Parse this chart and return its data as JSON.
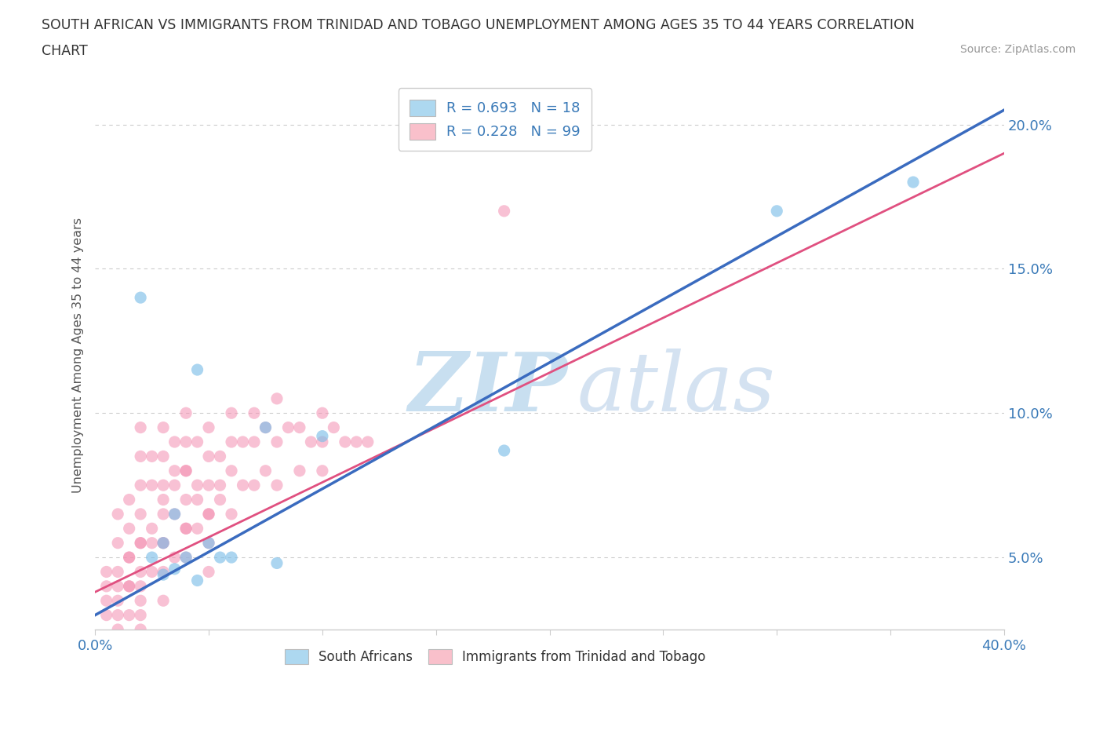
{
  "title_line1": "SOUTH AFRICAN VS IMMIGRANTS FROM TRINIDAD AND TOBAGO UNEMPLOYMENT AMONG AGES 35 TO 44 YEARS CORRELATION",
  "title_line2": "CHART",
  "source": "Source: ZipAtlas.com",
  "ylabel": "Unemployment Among Ages 35 to 44 years",
  "xlim": [
    0,
    0.4
  ],
  "ylim": [
    0.025,
    0.215
  ],
  "xticks": [
    0.0,
    0.05,
    0.1,
    0.15,
    0.2,
    0.25,
    0.3,
    0.35,
    0.4
  ],
  "yticks": [
    0.05,
    0.1,
    0.15,
    0.2
  ],
  "ytick_labels": [
    "5.0%",
    "10.0%",
    "15.0%",
    "20.0%"
  ],
  "blue_R": 0.693,
  "blue_N": 18,
  "pink_R": 0.228,
  "pink_N": 99,
  "blue_legend_color": "#add8f0",
  "pink_legend_color": "#f9c0cb",
  "blue_dot_color": "#7fbfe8",
  "pink_dot_color": "#f48fb1",
  "line_blue_color": "#3a6bbf",
  "line_pink_color": "#e05080",
  "watermark_zip": "ZIP",
  "watermark_atlas": "atlas",
  "watermark_color": "#d6eaf8",
  "blue_scatter_x": [
    0.02,
    0.045,
    0.075,
    0.1,
    0.035,
    0.03,
    0.05,
    0.055,
    0.06,
    0.025,
    0.04,
    0.08,
    0.035,
    0.03,
    0.045,
    0.18,
    0.3,
    0.36
  ],
  "blue_scatter_y": [
    0.14,
    0.115,
    0.095,
    0.092,
    0.065,
    0.055,
    0.055,
    0.05,
    0.05,
    0.05,
    0.05,
    0.048,
    0.046,
    0.044,
    0.042,
    0.087,
    0.17,
    0.18
  ],
  "pink_scatter_x": [
    0.005,
    0.005,
    0.01,
    0.01,
    0.01,
    0.01,
    0.01,
    0.015,
    0.015,
    0.015,
    0.015,
    0.015,
    0.02,
    0.02,
    0.02,
    0.02,
    0.02,
    0.02,
    0.02,
    0.02,
    0.02,
    0.02,
    0.02,
    0.025,
    0.025,
    0.025,
    0.025,
    0.03,
    0.03,
    0.03,
    0.03,
    0.03,
    0.03,
    0.03,
    0.035,
    0.035,
    0.035,
    0.035,
    0.04,
    0.04,
    0.04,
    0.04,
    0.04,
    0.04,
    0.045,
    0.045,
    0.045,
    0.05,
    0.05,
    0.05,
    0.05,
    0.05,
    0.05,
    0.055,
    0.055,
    0.06,
    0.06,
    0.06,
    0.06,
    0.065,
    0.065,
    0.07,
    0.07,
    0.07,
    0.075,
    0.075,
    0.08,
    0.08,
    0.08,
    0.085,
    0.09,
    0.09,
    0.095,
    0.1,
    0.1,
    0.1,
    0.105,
    0.11,
    0.115,
    0.12,
    0.005,
    0.005,
    0.005,
    0.01,
    0.01,
    0.015,
    0.015,
    0.02,
    0.02,
    0.025,
    0.03,
    0.03,
    0.035,
    0.04,
    0.04,
    0.045,
    0.05,
    0.055,
    0.18
  ],
  "pink_scatter_y": [
    0.045,
    0.035,
    0.065,
    0.055,
    0.045,
    0.035,
    0.025,
    0.07,
    0.06,
    0.05,
    0.04,
    0.03,
    0.095,
    0.085,
    0.075,
    0.065,
    0.055,
    0.045,
    0.035,
    0.03,
    0.025,
    0.02,
    0.018,
    0.085,
    0.075,
    0.055,
    0.045,
    0.095,
    0.085,
    0.075,
    0.065,
    0.055,
    0.045,
    0.035,
    0.09,
    0.08,
    0.065,
    0.05,
    0.1,
    0.09,
    0.08,
    0.07,
    0.06,
    0.05,
    0.09,
    0.075,
    0.06,
    0.095,
    0.085,
    0.075,
    0.065,
    0.055,
    0.045,
    0.085,
    0.07,
    0.1,
    0.09,
    0.08,
    0.065,
    0.09,
    0.075,
    0.1,
    0.09,
    0.075,
    0.095,
    0.08,
    0.105,
    0.09,
    0.075,
    0.095,
    0.095,
    0.08,
    0.09,
    0.1,
    0.09,
    0.08,
    0.095,
    0.09,
    0.09,
    0.09,
    0.04,
    0.03,
    0.02,
    0.04,
    0.03,
    0.05,
    0.04,
    0.055,
    0.04,
    0.06,
    0.07,
    0.055,
    0.075,
    0.08,
    0.06,
    0.07,
    0.065,
    0.075,
    0.17
  ]
}
